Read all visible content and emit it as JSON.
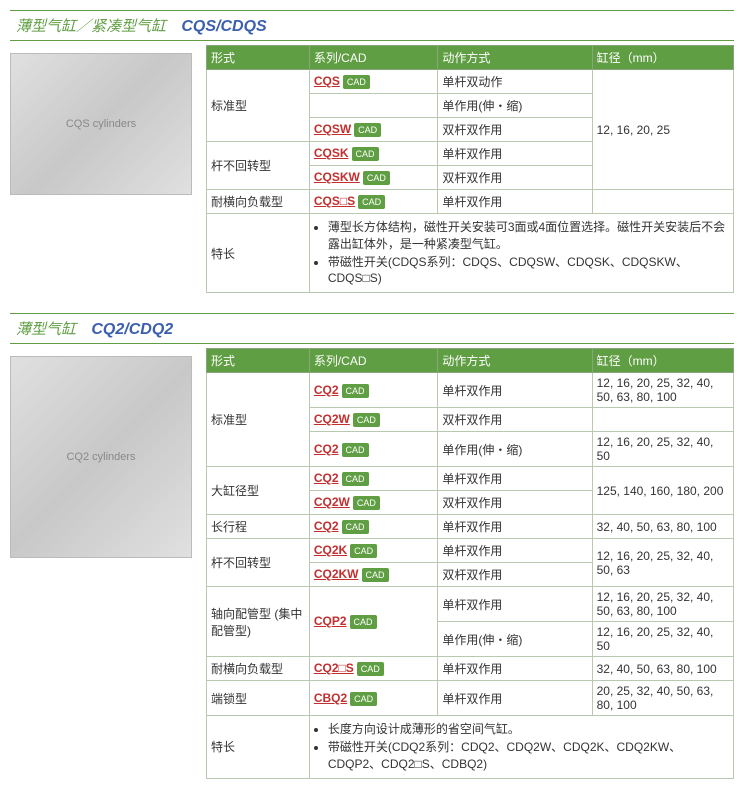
{
  "section1": {
    "title_cn": "薄型气缸／紧凑型气缸",
    "title_en": "CQS/CDQS",
    "img_alt": "CQS cylinders",
    "headers": [
      "形式",
      "系列/CAD",
      "动作方式",
      "缸径（mm）"
    ],
    "rows": [
      {
        "form": "标准型",
        "form_rowspan": 3,
        "series": "CQS",
        "action": "单杆双动作",
        "bore": "12, 16, 20, 25",
        "bore_rowspan": 5
      },
      {
        "series": "",
        "action": "单作用(伸・缩)"
      },
      {
        "series": "CQSW",
        "action": "双杆双作用"
      },
      {
        "form": "杆不回转型",
        "form_rowspan": 2,
        "series": "CQSK",
        "action": "单杆双作用"
      },
      {
        "series": "CQSKW",
        "action": "双杆双作用"
      },
      {
        "form": "耐横向负载型",
        "series": "CQS□S",
        "action": "单杆双作用",
        "bore": ""
      }
    ],
    "feature_label": "特长",
    "features": [
      "薄型长方体结构，磁性开关安装可3面或4面位置选择。磁性开关安装后不会露出缸体外，是一种紧凑型气缸。",
      "带磁性开关(CDQS系列：CDQS、CDQSW、CDQSK、CDQSKW、CDQS□S)"
    ]
  },
  "section2": {
    "title_cn": "薄型气缸",
    "title_en": "CQ2/CDQ2",
    "img_alt": "CQ2 cylinders",
    "headers": [
      "形式",
      "系列/CAD",
      "动作方式",
      "缸径（mm）"
    ],
    "rows": [
      {
        "form": "标准型",
        "form_rowspan": 3,
        "series": "CQ2",
        "action": "单杆双作用",
        "bore": "12, 16, 20, 25, 32, 40, 50, 63, 80, 100"
      },
      {
        "series": "CQ2W",
        "action": "双杆双作用",
        "bore": ""
      },
      {
        "series": "CQ2",
        "action": "单作用(伸・缩)",
        "bore": "12, 16, 20, 25, 32, 40, 50"
      },
      {
        "form": "大缸径型",
        "form_rowspan": 2,
        "series": "CQ2",
        "action": "单杆双作用",
        "bore": "125, 140, 160, 180, 200",
        "bore_rowspan": 2
      },
      {
        "series": "CQ2W",
        "action": "双杆双作用"
      },
      {
        "form": "长行程",
        "series": "CQ2",
        "action": "单杆双作用",
        "bore": "32, 40, 50, 63, 80, 100"
      },
      {
        "form": "杆不回转型",
        "form_rowspan": 2,
        "series": "CQ2K",
        "action": "单杆双作用",
        "bore": "12, 16, 20, 25, 32, 40, 50, 63",
        "bore_rowspan": 2
      },
      {
        "series": "CQ2KW",
        "action": "双杆双作用"
      },
      {
        "form": "轴向配管型 (集中配管型)",
        "form_rowspan": 2,
        "series": "CQP2",
        "series_rowspan": 2,
        "action": "单杆双作用",
        "bore": "12, 16, 20, 25, 32, 40, 50, 63, 80, 100"
      },
      {
        "action": "单作用(伸・缩)",
        "bore": "12, 16, 20, 25, 32, 40, 50"
      },
      {
        "form": "耐横向负载型",
        "series": "CQ2□S",
        "action": "单杆双作用",
        "bore": "32, 40, 50, 63, 80, 100"
      },
      {
        "form": "端锁型",
        "series": "CBQ2",
        "action": "单杆双作用",
        "bore": "20, 25, 32, 40, 50, 63, 80, 100"
      }
    ],
    "feature_label": "特长",
    "features": [
      "长度方向设计成薄形的省空间气缸。",
      "带磁性开关(CDQ2系列：CDQ2、CDQ2W、CDQ2K、CDQ2KW、CDQP2、CDQ2□S、CDBQ2)"
    ]
  },
  "cad_label": "CAD",
  "col_widths": {
    "form": "80",
    "series": "100",
    "action": "120",
    "bore": "110"
  }
}
